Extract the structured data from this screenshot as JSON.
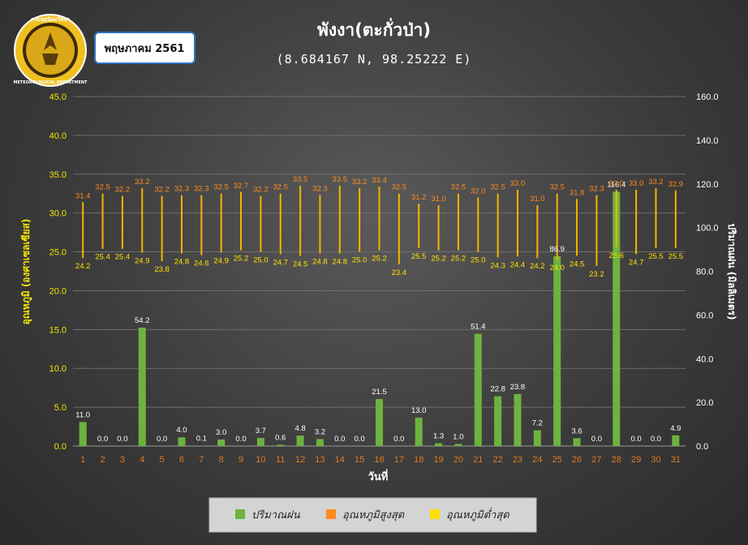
{
  "header": {
    "month_badge": "พฤษภาคม 2561",
    "logo_text_top": "กรมอุตุนิยมวิทยา",
    "logo_text_bottom": "METEOROLOGICAL DEPARTMENT"
  },
  "legend": {
    "rain": "ปริมาณฝน",
    "tmax": "อุณหภูมิสูงสุด",
    "tmin": "อุณหภูมิต่ำสุด"
  },
  "colors": {
    "rain": "#6db33f",
    "tmax": "#ff8a1e",
    "tmin": "#ffe000",
    "range_line": "#f5b400"
  },
  "chart_data": {
    "type": "bar",
    "title": "พังงา(ตะกั่วป่า)",
    "subtitle": "(8.684167 N, 98.25222 E)",
    "xlabel": "วันที่",
    "ylabel_left": "อุณหภูมิ (องศาเซลเซียส)",
    "ylabel_right": "ปริมาณฝน (มิลลิเมตร)",
    "ylim_left": [
      0,
      45
    ],
    "ylim_right": [
      0,
      160
    ],
    "yticks_left": [
      "0.0",
      "5.0",
      "10.0",
      "15.0",
      "20.0",
      "25.0",
      "30.0",
      "35.0",
      "40.0",
      "45.0"
    ],
    "yticks_right": [
      "0.0",
      "20.0",
      "40.0",
      "60.0",
      "80.0",
      "100.0",
      "120.0",
      "140.0",
      "160.0"
    ],
    "categories": [
      "1",
      "2",
      "3",
      "4",
      "5",
      "6",
      "7",
      "8",
      "9",
      "10",
      "11",
      "12",
      "13",
      "14",
      "15",
      "16",
      "17",
      "18",
      "19",
      "20",
      "21",
      "22",
      "23",
      "24",
      "25",
      "26",
      "27",
      "28",
      "29",
      "30",
      "31"
    ],
    "series": [
      {
        "name": "ปริมาณฝน",
        "axis": "right",
        "values": [
          11.0,
          0.0,
          0.0,
          54.2,
          0.0,
          4.0,
          0.1,
          3.0,
          0.0,
          3.7,
          0.6,
          4.8,
          3.2,
          0.0,
          0.0,
          21.5,
          0.0,
          13.0,
          1.3,
          1.0,
          51.4,
          22.8,
          23.8,
          7.2,
          86.9,
          3.6,
          0.0,
          116.4,
          0.0,
          0.0,
          4.9
        ],
        "labels": [
          "11.0",
          "0.0",
          "0.0",
          "54.2",
          "0.0",
          "4.0",
          "0.1",
          "3.0",
          "0.0",
          "3.7",
          "0.6",
          "4.8",
          "3.2",
          "0.0",
          "0.0",
          "21.5",
          "0.0",
          "13.0",
          "1.3",
          "1.0",
          "51.4",
          "22.8",
          "23.8",
          "7.2",
          "86.9",
          "3.6",
          "0.0",
          "116.4",
          "0.0",
          "0.0",
          "4.9"
        ]
      },
      {
        "name": "อุณหภูมิสูงสุด",
        "axis": "left",
        "values": [
          31.4,
          32.5,
          32.2,
          33.2,
          32.2,
          32.3,
          32.3,
          32.5,
          32.7,
          32.2,
          32.5,
          33.5,
          32.3,
          33.5,
          33.2,
          33.4,
          32.5,
          31.2,
          31.0,
          32.5,
          32.0,
          32.5,
          33.0,
          31.0,
          32.5,
          31.8,
          32.3,
          33.0,
          33.0,
          33.2,
          32.9
        ],
        "labels": [
          "31.4",
          "32.5",
          "32.2",
          "33.2",
          "32.2",
          "32.3",
          "32.3",
          "32.5",
          "32.7",
          "32.2",
          "32.5",
          "33.5",
          "32.3",
          "33.5",
          "33.2",
          "33.4",
          "32.5",
          "31.2",
          "31.0",
          "32.5",
          "32.0",
          "32.5",
          "33.0",
          "31.0",
          "32.5",
          "31.8",
          "32.3",
          "33.0",
          "33.0",
          "33.2",
          "32.9"
        ]
      },
      {
        "name": "อุณหภูมิต่ำสุด",
        "axis": "left",
        "values": [
          24.2,
          25.4,
          25.4,
          24.9,
          23.8,
          24.8,
          24.6,
          24.9,
          25.2,
          25.0,
          24.7,
          24.5,
          24.8,
          24.8,
          25.0,
          25.2,
          23.4,
          25.5,
          25.2,
          25.2,
          25.0,
          24.3,
          24.4,
          24.2,
          24.0,
          24.5,
          23.2,
          25.6,
          24.7,
          25.5,
          25.5
        ],
        "labels": [
          "24.2",
          "25.4",
          "25.4",
          "24.9",
          "23.8",
          "24.8",
          "24.6",
          "24.9",
          "25.2",
          "25.0",
          "24.7",
          "24.5",
          "24.8",
          "24.8",
          "25.0",
          "25.2",
          "23.4",
          "25.5",
          "25.2",
          "25.2",
          "25.0",
          "24.3",
          "24.4",
          "24.2",
          "24.0",
          "24.5",
          "23.2",
          "25.6",
          "24.7",
          "25.5",
          "25.5"
        ]
      }
    ],
    "grid": true,
    "legend_position": "bottom"
  }
}
